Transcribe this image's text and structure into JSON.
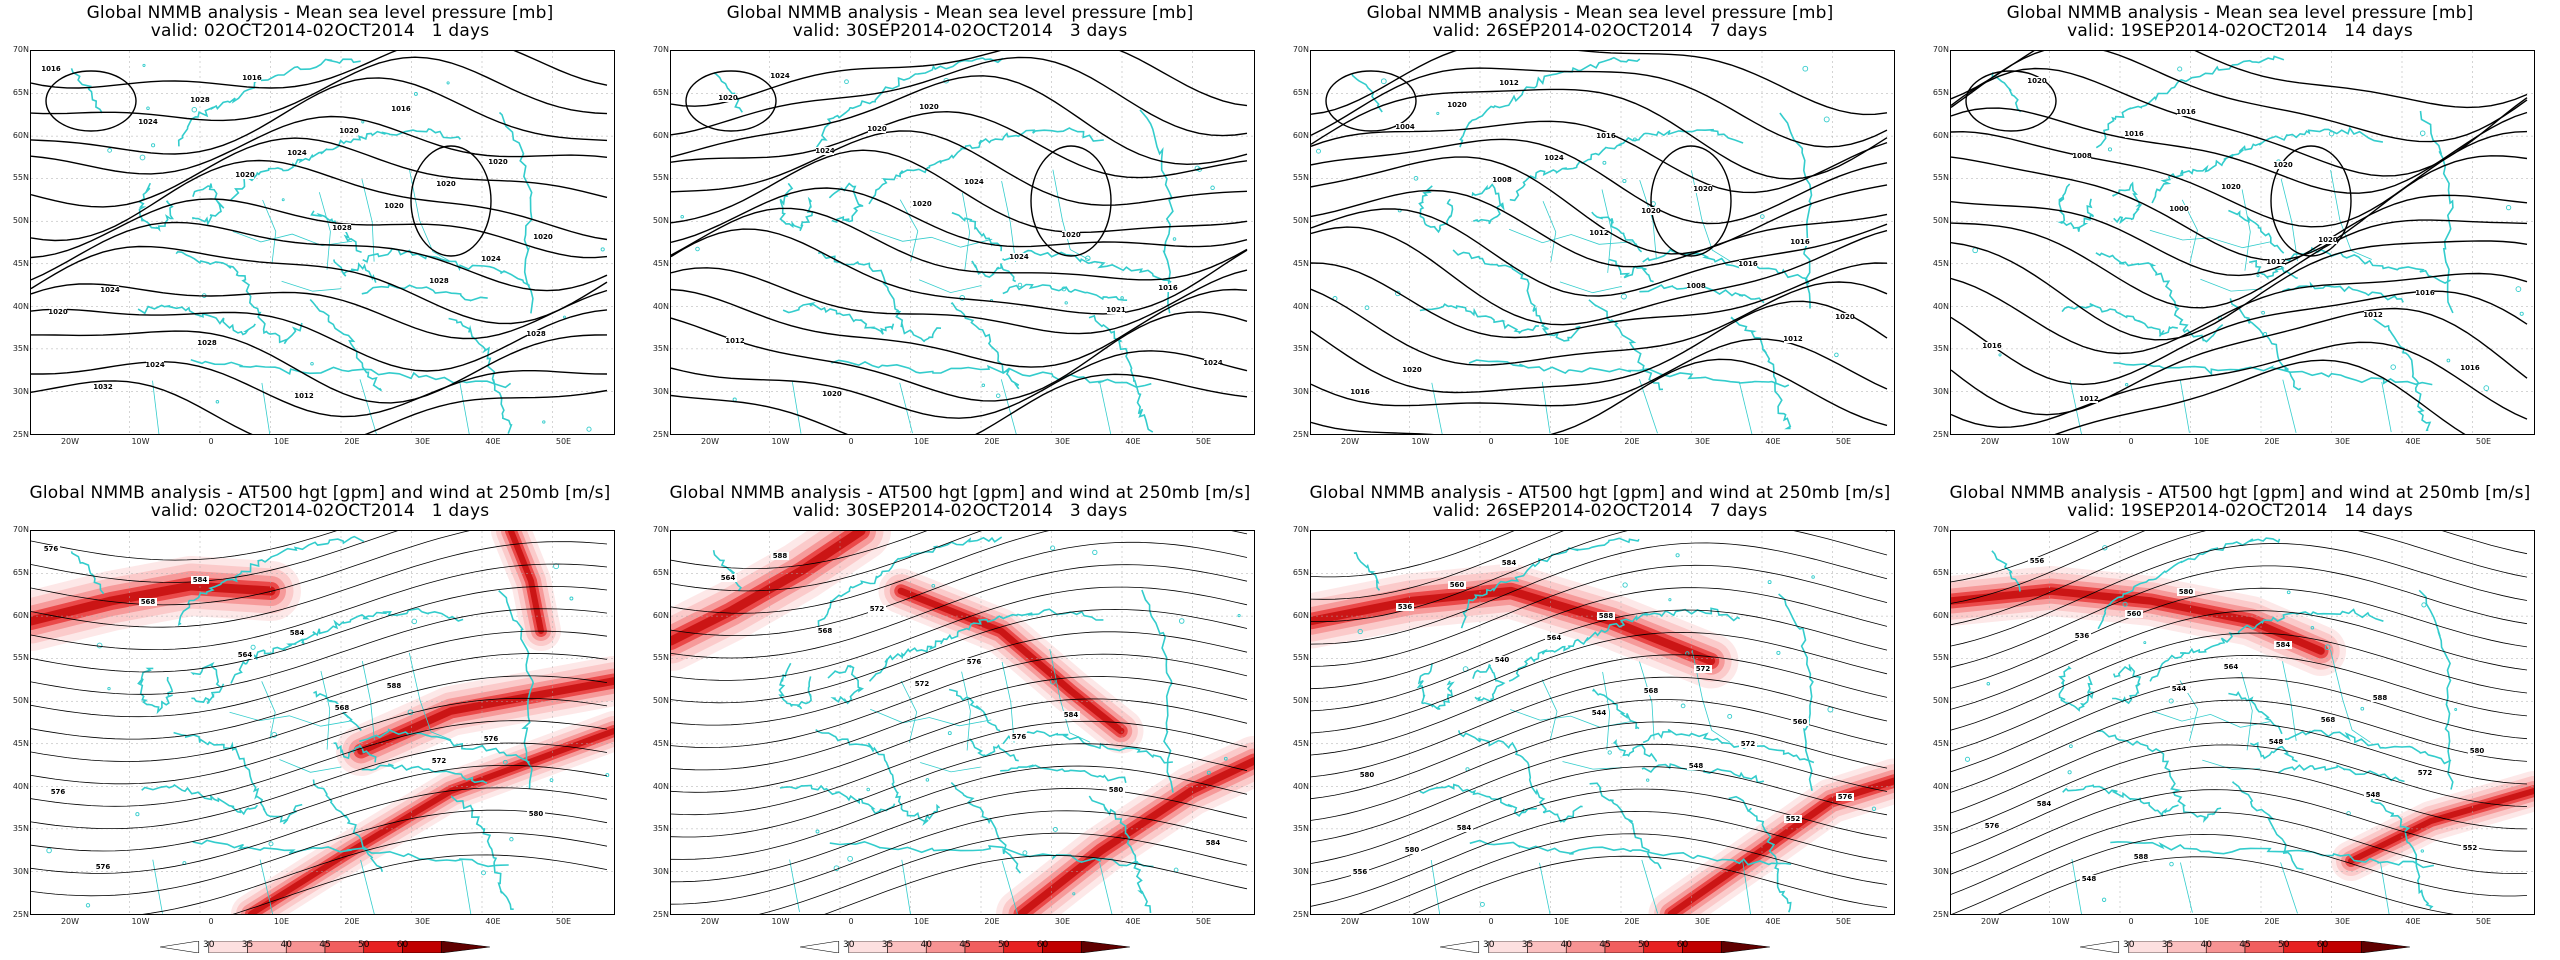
{
  "top_row": [
    {
      "title": "Global NMMB analysis - Mean sea level pressure [mb]",
      "valid": "valid: 02OCT2014-02OCT2014   1 days",
      "labels": [
        "1016",
        "1024",
        "1020",
        "1028",
        "1028",
        "1028",
        "1032",
        "1028",
        "1024",
        "1020",
        "1024",
        "1020",
        "1024",
        "1016",
        "1020",
        "1020",
        "1020",
        "1024",
        "1028",
        "1012",
        "1016",
        "1020"
      ]
    },
    {
      "title": "Global NMMB analysis - Mean sea level pressure [mb]",
      "valid": "valid: 30SEP2014-02OCT2014   3 days",
      "labels": [
        "1020",
        "1024",
        "1020",
        "1024",
        "1021",
        "1024",
        "1024",
        "1020",
        "1024",
        "1020",
        "1016",
        "1012",
        "1020",
        "1020"
      ]
    },
    {
      "title": "Global NMMB analysis - Mean sea level pressure [mb]",
      "valid": "valid: 26SEP2014-02OCT2014   7 days",
      "labels": [
        "1004",
        "1008",
        "1012",
        "1008",
        "1012",
        "1016",
        "1020",
        "1024",
        "1020",
        "1016",
        "1020",
        "1020",
        "1012",
        "1016",
        "1020",
        "1016"
      ]
    },
    {
      "title": "Global NMMB analysis - Mean sea level pressure [mb]",
      "valid": "valid: 19SEP2014-02OCT2014   14 days",
      "labels": [
        "1008",
        "1000",
        "1012",
        "1012",
        "1016",
        "1020",
        "1016",
        "1020",
        "1020",
        "1016",
        "1016",
        "1012",
        "1016",
        "1020"
      ]
    }
  ],
  "bottom_row": [
    {
      "title": "Global NMMB analysis - AT500 hgt [gpm] and wind at 250mb [m/s]",
      "valid": "valid: 02OCT2014-02OCT2014   1 days",
      "labels": [
        "576",
        "568",
        "564",
        "568",
        "572",
        "580",
        "576",
        "584",
        "584",
        "588",
        "576",
        "576"
      ]
    },
    {
      "title": "Global NMMB analysis - AT500 hgt [gpm] and wind at 250mb [m/s]",
      "valid": "valid: 30SEP2014-02OCT2014   3 days",
      "labels": [
        "564",
        "568",
        "572",
        "576",
        "580",
        "584",
        "588",
        "572",
        "576",
        "584"
      ]
    },
    {
      "title": "Global NMMB analysis - AT500 hgt [gpm] and wind at 250mb [m/s]",
      "valid": "valid: 26SEP2014-02OCT2014   7 days",
      "labels": [
        "536",
        "540",
        "544",
        "548",
        "552",
        "556",
        "560",
        "564",
        "568",
        "572",
        "576",
        "580",
        "584",
        "588",
        "572",
        "560",
        "580",
        "584"
      ]
    },
    {
      "title": "Global NMMB analysis - AT500 hgt [gpm] and wind at 250mb [m/s]",
      "valid": "valid: 19SEP2014-02OCT2014   14 days",
      "labels": [
        "536",
        "544",
        "548",
        "548",
        "552",
        "556",
        "560",
        "564",
        "568",
        "572",
        "576",
        "548",
        "580",
        "584",
        "588",
        "580",
        "584",
        "588"
      ]
    }
  ],
  "lat_labels": [
    "70N",
    "65N",
    "60N",
    "55N",
    "50N",
    "45N",
    "40N",
    "35N",
    "30N",
    "25N"
  ],
  "lon_labels": [
    "20W",
    "10W",
    "0",
    "10E",
    "20E",
    "30E",
    "40E",
    "50E"
  ],
  "colorbar": {
    "ticks": [
      "30",
      "35",
      "40",
      "45",
      "50",
      "60"
    ],
    "colors": [
      "#ffffff",
      "#fde0e0",
      "#fbc0c0",
      "#f79393",
      "#f15f5f",
      "#e72222",
      "#c00000",
      "#600000"
    ]
  },
  "colors": {
    "coast": "#33cccc",
    "contour": "#000000",
    "jet": "#e41a1a"
  }
}
